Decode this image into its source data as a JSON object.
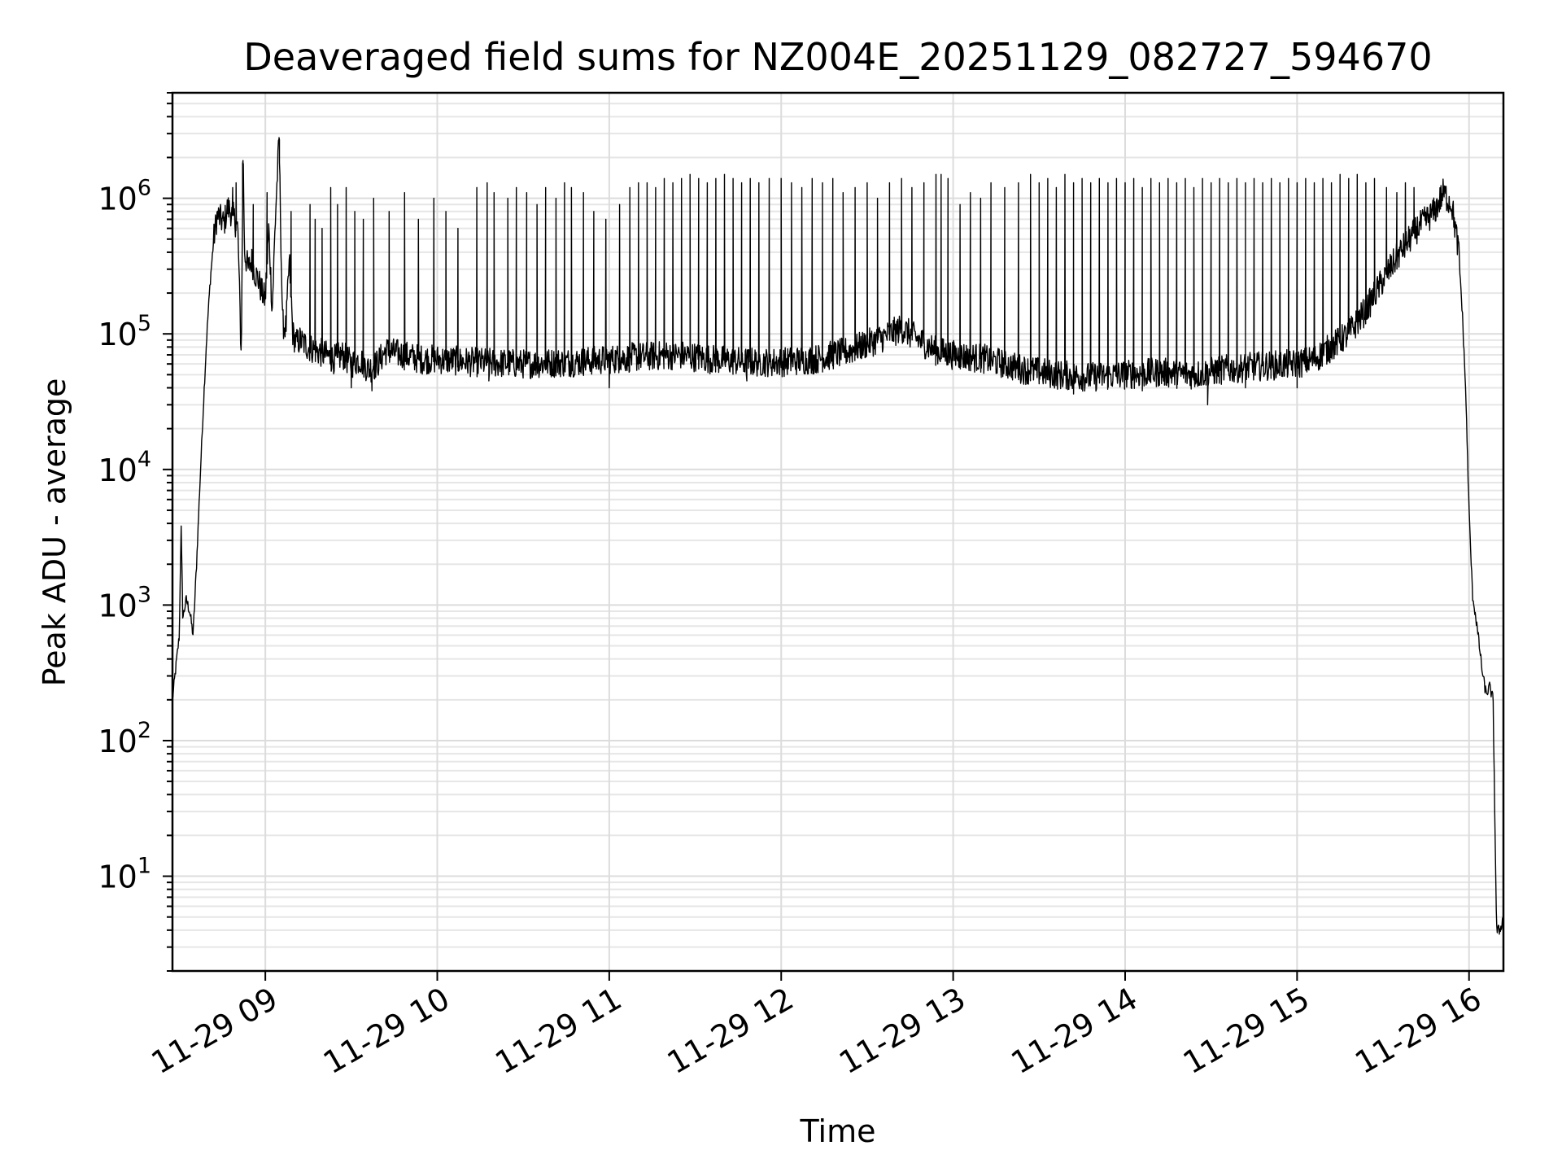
{
  "chart_data": {
    "type": "line",
    "title": "Deaveraged field sums for NZ004E_20251129_082727_594670",
    "xlabel": "Time",
    "ylabel": "Peak ADU - average",
    "yscale": "log",
    "ylim": [
      2,
      6000000
    ],
    "xlim_hours": [
      8.46,
      16.2
    ],
    "x_ticks": [
      {
        "value": 9,
        "label": "11-29 09"
      },
      {
        "value": 10,
        "label": "11-29 10"
      },
      {
        "value": 11,
        "label": "11-29 11"
      },
      {
        "value": 12,
        "label": "11-29 12"
      },
      {
        "value": 13,
        "label": "11-29 13"
      },
      {
        "value": 14,
        "label": "11-29 14"
      },
      {
        "value": 15,
        "label": "11-29 15"
      },
      {
        "value": 16,
        "label": "11-29 16"
      }
    ],
    "y_ticks": [
      {
        "value": 10,
        "base": "10",
        "exp": "1"
      },
      {
        "value": 100,
        "base": "10",
        "exp": "2"
      },
      {
        "value": 1000,
        "base": "10",
        "exp": "3"
      },
      {
        "value": 10000,
        "base": "10",
        "exp": "4"
      },
      {
        "value": 100000,
        "base": "10",
        "exp": "5"
      },
      {
        "value": 1000000,
        "base": "10",
        "exp": "6"
      }
    ],
    "grid": true,
    "series": [
      {
        "name": "Peak ADU - average",
        "color": "#000000",
        "points": [
          [
            8.46,
            200
          ],
          [
            8.48,
            350
          ],
          [
            8.5,
            600
          ],
          [
            8.51,
            4000
          ],
          [
            8.52,
            800
          ],
          [
            8.54,
            1100
          ],
          [
            8.56,
            900
          ],
          [
            8.58,
            600
          ],
          [
            8.6,
            2000
          ],
          [
            8.62,
            8000
          ],
          [
            8.64,
            30000
          ],
          [
            8.66,
            100000
          ],
          [
            8.68,
            250000
          ],
          [
            8.7,
            500000
          ],
          [
            8.72,
            750000
          ],
          [
            8.74,
            700000
          ],
          [
            8.76,
            650000
          ],
          [
            8.78,
            850000
          ],
          [
            8.8,
            800000
          ],
          [
            8.82,
            700000
          ],
          [
            8.84,
            600000
          ],
          [
            8.86,
            65000
          ],
          [
            8.87,
            1800000
          ],
          [
            8.88,
            400000
          ],
          [
            8.9,
            300000
          ],
          [
            8.92,
            350000
          ],
          [
            8.94,
            280000
          ],
          [
            8.96,
            250000
          ],
          [
            8.98,
            200000
          ],
          [
            9.0,
            180000
          ],
          [
            9.02,
            600000
          ],
          [
            9.04,
            150000
          ],
          [
            9.06,
            800000
          ],
          [
            9.08,
            2700000
          ],
          [
            9.1,
            120000
          ],
          [
            9.12,
            110000
          ],
          [
            9.14,
            350000
          ],
          [
            9.16,
            100000
          ],
          [
            9.18,
            85000
          ],
          [
            9.2,
            90000
          ],
          [
            9.25,
            80000
          ],
          [
            9.3,
            75000
          ],
          [
            9.35,
            70000
          ],
          [
            9.4,
            65000
          ],
          [
            9.45,
            70000
          ],
          [
            9.5,
            60000
          ],
          [
            9.55,
            65000
          ],
          [
            9.6,
            55000
          ],
          [
            9.65,
            60000
          ],
          [
            9.7,
            75000
          ],
          [
            9.8,
            70000
          ],
          [
            9.9,
            65000
          ],
          [
            10.0,
            65000
          ],
          [
            10.2,
            62000
          ],
          [
            10.5,
            60000
          ],
          [
            10.8,
            62000
          ],
          [
            11.0,
            65000
          ],
          [
            11.2,
            68000
          ],
          [
            11.4,
            70000
          ],
          [
            11.6,
            65000
          ],
          [
            11.8,
            62000
          ],
          [
            12.0,
            62000
          ],
          [
            12.2,
            65000
          ],
          [
            12.4,
            75000
          ],
          [
            12.6,
            95000
          ],
          [
            12.7,
            110000
          ],
          [
            12.8,
            90000
          ],
          [
            12.9,
            75000
          ],
          [
            13.0,
            70000
          ],
          [
            13.2,
            65000
          ],
          [
            13.4,
            55000
          ],
          [
            13.6,
            50000
          ],
          [
            13.8,
            48000
          ],
          [
            14.0,
            50000
          ],
          [
            14.2,
            52000
          ],
          [
            14.4,
            50000
          ],
          [
            14.6,
            55000
          ],
          [
            14.8,
            58000
          ],
          [
            15.0,
            60000
          ],
          [
            15.1,
            65000
          ],
          [
            15.2,
            80000
          ],
          [
            15.3,
            100000
          ],
          [
            15.4,
            150000
          ],
          [
            15.5,
            250000
          ],
          [
            15.6,
            400000
          ],
          [
            15.7,
            600000
          ],
          [
            15.8,
            800000
          ],
          [
            15.85,
            1100000
          ],
          [
            15.9,
            900000
          ],
          [
            15.94,
            400000
          ],
          [
            15.96,
            150000
          ],
          [
            15.98,
            40000
          ],
          [
            16.0,
            5000
          ],
          [
            16.02,
            1200
          ],
          [
            16.04,
            800
          ],
          [
            16.06,
            500
          ],
          [
            16.08,
            300
          ],
          [
            16.1,
            220
          ],
          [
            16.12,
            250
          ],
          [
            16.14,
            200
          ],
          [
            16.16,
            4
          ],
          [
            16.18,
            4
          ],
          [
            16.2,
            5
          ]
        ],
        "spikes": [
          [
            8.81,
            1200000
          ],
          [
            8.83,
            1300000
          ],
          [
            8.87,
            1900000
          ],
          [
            8.93,
            900000
          ],
          [
            9.01,
            1100000
          ],
          [
            9.08,
            2800000
          ],
          [
            9.15,
            800000
          ],
          [
            9.26,
            900000
          ],
          [
            9.29,
            700000
          ],
          [
            9.33,
            600000
          ],
          [
            9.38,
            1200000
          ],
          [
            9.42,
            900000
          ],
          [
            9.47,
            1200000
          ],
          [
            9.52,
            800000
          ],
          [
            9.57,
            700000
          ],
          [
            9.63,
            1000000
          ],
          [
            9.72,
            800000
          ],
          [
            9.81,
            1100000
          ],
          [
            9.89,
            700000
          ],
          [
            9.98,
            1000000
          ],
          [
            10.05,
            800000
          ],
          [
            10.12,
            600000
          ],
          [
            10.23,
            1200000
          ],
          [
            10.29,
            1300000
          ],
          [
            10.33,
            1100000
          ],
          [
            10.41,
            1000000
          ],
          [
            10.46,
            1200000
          ],
          [
            10.52,
            1100000
          ],
          [
            10.58,
            900000
          ],
          [
            10.63,
            1200000
          ],
          [
            10.69,
            1000000
          ],
          [
            10.74,
            1300000
          ],
          [
            10.78,
            1200000
          ],
          [
            10.85,
            1100000
          ],
          [
            10.91,
            800000
          ],
          [
            10.98,
            700000
          ],
          [
            11.06,
            900000
          ],
          [
            11.12,
            1200000
          ],
          [
            11.17,
            1300000
          ],
          [
            11.22,
            1300000
          ],
          [
            11.27,
            1200000
          ],
          [
            11.32,
            1400000
          ],
          [
            11.37,
            1300000
          ],
          [
            11.42,
            1400000
          ],
          [
            11.47,
            1500000
          ],
          [
            11.52,
            1400000
          ],
          [
            11.57,
            1300000
          ],
          [
            11.62,
            1400000
          ],
          [
            11.67,
            1500000
          ],
          [
            11.72,
            1400000
          ],
          [
            11.77,
            1300000
          ],
          [
            11.82,
            1400000
          ],
          [
            11.87,
            1300000
          ],
          [
            11.93,
            1400000
          ],
          [
            12.0,
            1400000
          ],
          [
            12.06,
            1300000
          ],
          [
            12.12,
            1200000
          ],
          [
            12.18,
            1400000
          ],
          [
            12.24,
            1300000
          ],
          [
            12.3,
            1400000
          ],
          [
            12.36,
            1100000
          ],
          [
            12.43,
            1200000
          ],
          [
            12.5,
            1300000
          ],
          [
            12.56,
            1000000
          ],
          [
            12.63,
            1300000
          ],
          [
            12.7,
            1400000
          ],
          [
            12.76,
            1200000
          ],
          [
            12.83,
            1300000
          ],
          [
            12.9,
            1500000
          ],
          [
            12.93,
            1500000
          ],
          [
            12.97,
            1400000
          ],
          [
            13.04,
            900000
          ],
          [
            13.1,
            1100000
          ],
          [
            13.16,
            1000000
          ],
          [
            13.22,
            1300000
          ],
          [
            13.3,
            1200000
          ],
          [
            13.38,
            1300000
          ],
          [
            13.45,
            1500000
          ],
          [
            13.5,
            1300000
          ],
          [
            13.55,
            1400000
          ],
          [
            13.6,
            1200000
          ],
          [
            13.65,
            1500000
          ],
          [
            13.7,
            1300000
          ],
          [
            13.75,
            1400000
          ],
          [
            13.8,
            1300000
          ],
          [
            13.85,
            1400000
          ],
          [
            13.9,
            1300000
          ],
          [
            13.95,
            1400000
          ],
          [
            14.0,
            1300000
          ],
          [
            14.05,
            1400000
          ],
          [
            14.1,
            1200000
          ],
          [
            14.15,
            1400000
          ],
          [
            14.2,
            1300000
          ],
          [
            14.25,
            1400000
          ],
          [
            14.3,
            1300000
          ],
          [
            14.35,
            1400000
          ],
          [
            14.4,
            1200000
          ],
          [
            14.45,
            1400000
          ],
          [
            14.5,
            1300000
          ],
          [
            14.55,
            1400000
          ],
          [
            14.6,
            1300000
          ],
          [
            14.65,
            1400000
          ],
          [
            14.7,
            1300000
          ],
          [
            14.75,
            1400000
          ],
          [
            14.8,
            1300000
          ],
          [
            14.85,
            1400000
          ],
          [
            14.9,
            1300000
          ],
          [
            14.95,
            1400000
          ],
          [
            15.0,
            1300000
          ],
          [
            15.05,
            1400000
          ],
          [
            15.1,
            1300000
          ],
          [
            15.15,
            1400000
          ],
          [
            15.2,
            1300000
          ],
          [
            15.25,
            1500000
          ],
          [
            15.3,
            1400000
          ],
          [
            15.35,
            1500000
          ],
          [
            15.4,
            1300000
          ],
          [
            15.45,
            1400000
          ],
          [
            15.52,
            1200000
          ],
          [
            15.58,
            1100000
          ],
          [
            15.63,
            1300000
          ],
          [
            15.68,
            1200000
          ]
        ],
        "dips": [
          [
            9.5,
            40000
          ],
          [
            9.62,
            38000
          ],
          [
            10.3,
            45000
          ],
          [
            11.0,
            40000
          ],
          [
            11.8,
            45000
          ],
          [
            13.7,
            36000
          ],
          [
            14.1,
            38000
          ],
          [
            14.48,
            30000
          ],
          [
            15.0,
            40000
          ],
          [
            14.7,
            40000
          ]
        ]
      }
    ]
  }
}
